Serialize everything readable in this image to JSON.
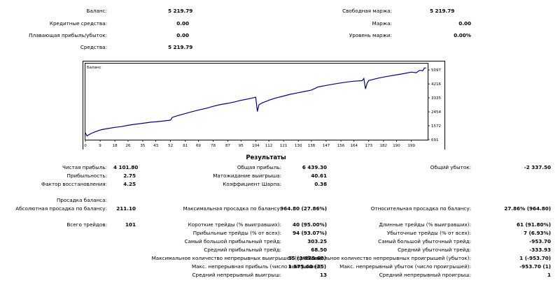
{
  "account": {
    "balance_label": "Баланс:",
    "balance_value": "5 219.79",
    "credit_label": "Кредитные средства:",
    "credit_value": "0.00",
    "floating_label": "Плавающая прибыль/убыток:",
    "floating_value": "0.00",
    "equity_label": "Средства:",
    "equity_value": "5 219.79",
    "free_margin_label": "Свободная маржа:",
    "free_margin_value": "5 219.79",
    "margin_label": "Маржа:",
    "margin_value": "0.00",
    "margin_level_label": "Уровень маржи:",
    "margin_level_value": "0.00%"
  },
  "chart_data": {
    "type": "line",
    "title": "Баланс",
    "x_ticks": [
      0,
      9,
      18,
      26,
      35,
      43,
      52,
      61,
      69,
      78,
      87,
      95,
      104,
      112,
      121,
      130,
      138,
      147,
      156,
      164,
      173,
      182,
      190,
      199
    ],
    "y_ticks": [
      691,
      1572,
      2454,
      3335,
      4216,
      5097
    ],
    "xlim": [
      0,
      209
    ],
    "ylim": [
      691,
      5500
    ],
    "series": [
      {
        "color": "#00008b",
        "x": [
          0,
          1,
          2,
          4,
          6,
          8,
          10,
          14,
          18,
          22,
          26,
          30,
          35,
          40,
          43,
          48,
          52,
          53,
          56,
          61,
          65,
          69,
          74,
          78,
          82,
          87,
          91,
          95,
          99,
          103,
          104,
          105,
          106,
          108,
          112,
          116,
          121,
          125,
          130,
          134,
          138,
          140,
          142,
          147,
          152,
          156,
          160,
          164,
          169,
          170,
          171,
          172,
          173,
          178,
          182,
          186,
          190,
          195,
          199,
          202,
          204,
          206,
          207,
          208
        ],
        "y": [
          1120,
          930,
          1000,
          1110,
          1190,
          1270,
          1330,
          1400,
          1470,
          1520,
          1600,
          1660,
          1730,
          1800,
          1820,
          1880,
          1930,
          2100,
          2200,
          2340,
          2460,
          2560,
          2680,
          2800,
          2900,
          2990,
          3080,
          3180,
          3260,
          3350,
          3380,
          2480,
          2900,
          3020,
          3180,
          3320,
          3450,
          3560,
          3660,
          3740,
          3830,
          3920,
          4020,
          4120,
          4210,
          4280,
          4340,
          4390,
          4420,
          4560,
          3900,
          4250,
          4430,
          4560,
          4650,
          4720,
          4790,
          4880,
          4960,
          4920,
          5070,
          5050,
          5220,
          5220
        ]
      }
    ]
  },
  "results": {
    "title": "Результаты",
    "net_profit_label": "Чистая прибыль:",
    "net_profit_value": "4 101.80",
    "gross_profit_label": "Общая прибыль:",
    "gross_profit_value": "6 439.30",
    "gross_loss_label": "Общий убыток:",
    "gross_loss_value": "-2 337.50",
    "profit_factor_label": "Прибыльность:",
    "profit_factor_value": "2.75",
    "expected_payoff_label": "Матожидание выигрыша:",
    "expected_payoff_value": "40.61",
    "recovery_factor_label": "Фактор восстановления:",
    "recovery_factor_value": "4.25",
    "sharpe_label": "Коэффициент Шарпа:",
    "sharpe_value": "0.38",
    "drawdown_header": "Просадка баланса:",
    "abs_dd_label": "Абсолютная просадка по балансу:",
    "abs_dd_value": "211.10",
    "max_dd_label": "Максимальная просадка по балансу:",
    "max_dd_value": "964.80 (27.86%)",
    "rel_dd_label": "Относительная просадка по балансу:",
    "rel_dd_value": "27.86% (964.80)",
    "total_trades_label": "Всего трейдов:",
    "total_trades_value": "101",
    "short_label": "Короткие трейды (% выигравших):",
    "short_value": "40 (95.00%)",
    "long_label": "Длинные трейды (% выигравших):",
    "long_value": "61 (91.80%)",
    "profit_trades_label": "Прибыльные трейды (% от всех):",
    "profit_trades_value": "94 (93.07%)",
    "loss_trades_label": "Убыточные трейды (% от всех):",
    "loss_trades_value": "7 (6.93%)",
    "largest_profit_label": "Самый большой прибыльный трейд:",
    "largest_profit_value": "303.25",
    "largest_loss_label": "Самый большой убыточный трейд:",
    "largest_loss_value": "-953.70",
    "avg_profit_label": "Средний прибыльный трейд:",
    "avg_profit_value": "68.50",
    "avg_loss_label": "Средний убыточный трейд:",
    "avg_loss_value": "-333.93",
    "max_cons_wins_label": "Максимальное количество непрерывных выигрышей (прибыль):",
    "max_cons_wins_value": "35 (1 975.60)",
    "max_cons_losses_label": "Максимальное количество непрерывных проигрышей (убыток):",
    "max_cons_losses_value": "1 (-953.70)",
    "max_cons_profit_label": "Макс. непрерывная прибыль (число выигрышей):",
    "max_cons_profit_value": "1 975.60 (35)",
    "max_cons_loss_label": "Макс. непрерывный убыток (число проигрышей):",
    "max_cons_loss_value": "-953.70 (1)",
    "avg_cons_wins_label": "Средний непрерывный выигрыш:",
    "avg_cons_wins_value": "13",
    "avg_cons_losses_label": "Средний непрерывный проигрыш:",
    "avg_cons_losses_value": "1"
  }
}
